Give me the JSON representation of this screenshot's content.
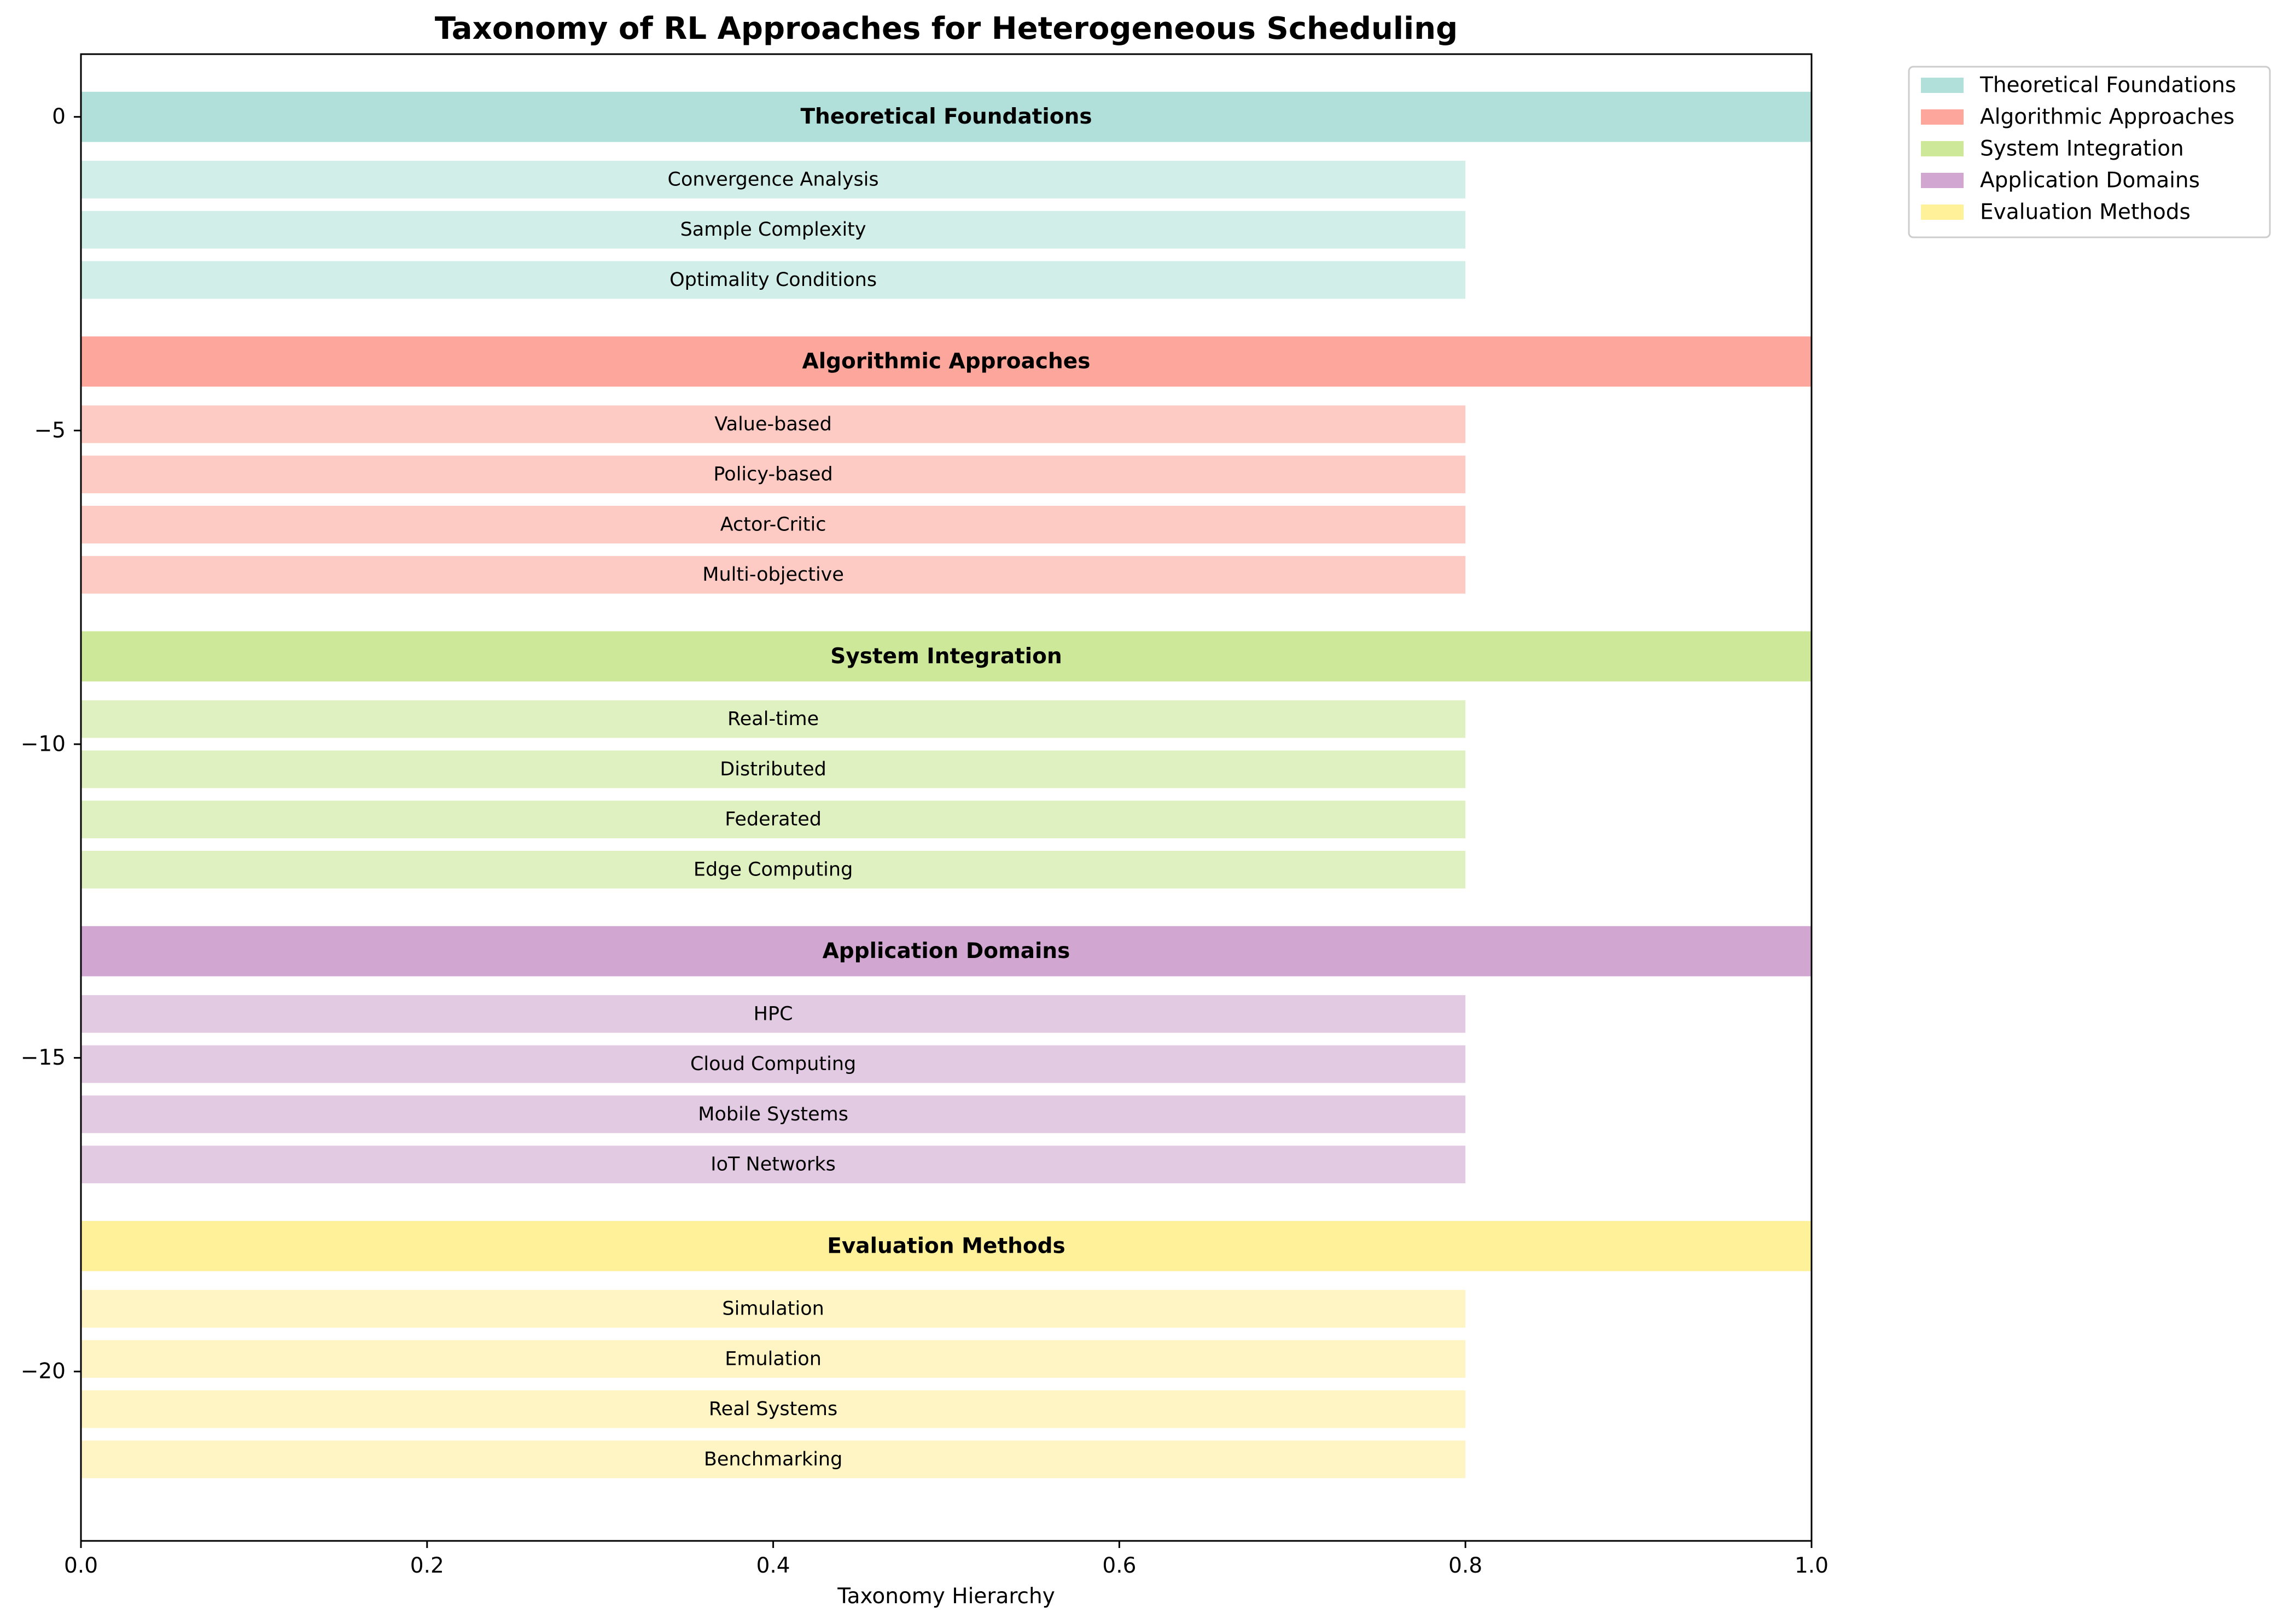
{
  "chart_data": {
    "type": "bar",
    "orientation": "horizontal",
    "title": "Taxonomy of RL Approaches for Heterogeneous Scheduling",
    "xlabel": "Taxonomy Hierarchy",
    "ylabel": "",
    "xlim": [
      0,
      1
    ],
    "ylim": [
      -22.7,
      1
    ],
    "xticks": [
      "0.0",
      "0.2",
      "0.4",
      "0.6",
      "0.8",
      "1.0"
    ],
    "yticks": [
      "0",
      "−5",
      "−10",
      "−15",
      "−20"
    ],
    "grid": false,
    "legend_position": "outside top-right",
    "legend": [
      {
        "label": "Theoretical Foundations",
        "color": "#b0e0d9"
      },
      {
        "label": "Algorithmic Approaches",
        "color": "#fca69c"
      },
      {
        "label": "System Integration",
        "color": "#cce898"
      },
      {
        "label": "Application Domains",
        "color": "#d1a7d2"
      },
      {
        "label": "Evaluation Methods",
        "color": "#fff09a"
      }
    ],
    "categories": [
      {
        "name": "Theoretical Foundations",
        "y": 0,
        "value": 1.0,
        "color": "#b0e0d9",
        "sub_color": "#d2eee9",
        "subcategories": [
          {
            "name": "Convergence Analysis",
            "y": -1,
            "value": 0.8
          },
          {
            "name": "Sample Complexity",
            "y": -1.8,
            "value": 0.8
          },
          {
            "name": "Optimality Conditions",
            "y": -2.6,
            "value": 0.8
          }
        ]
      },
      {
        "name": "Algorithmic Approaches",
        "y": -3.9,
        "value": 1.0,
        "color": "#fca69c",
        "sub_color": "#fdcac4",
        "subcategories": [
          {
            "name": "Value-based",
            "y": -4.9,
            "value": 0.8
          },
          {
            "name": "Policy-based",
            "y": -5.7,
            "value": 0.8
          },
          {
            "name": "Actor-Critic",
            "y": -6.5,
            "value": 0.8
          },
          {
            "name": "Multi-objective",
            "y": -7.3,
            "value": 0.8
          }
        ]
      },
      {
        "name": "System Integration",
        "y": -8.6,
        "value": 1.0,
        "color": "#cce898",
        "sub_color": "#e0f1c1",
        "subcategories": [
          {
            "name": "Real-time",
            "y": -9.6,
            "value": 0.8
          },
          {
            "name": "Distributed",
            "y": -10.4,
            "value": 0.8
          },
          {
            "name": "Federated",
            "y": -11.2,
            "value": 0.8
          },
          {
            "name": "Edge Computing",
            "y": -12.0,
            "value": 0.8
          }
        ]
      },
      {
        "name": "Application Domains",
        "y": -13.3,
        "value": 1.0,
        "color": "#d1a7d2",
        "sub_color": "#e3cae3",
        "subcategories": [
          {
            "name": "HPC",
            "y": -14.3,
            "value": 0.8
          },
          {
            "name": "Cloud Computing",
            "y": -15.1,
            "value": 0.8
          },
          {
            "name": "Mobile Systems",
            "y": -15.9,
            "value": 0.8
          },
          {
            "name": "IoT Networks",
            "y": -16.7,
            "value": 0.8
          }
        ]
      },
      {
        "name": "Evaluation Methods",
        "y": -18.0,
        "value": 1.0,
        "color": "#fff09a",
        "sub_color": "#fff5c4",
        "subcategories": [
          {
            "name": "Simulation",
            "y": -19.0,
            "value": 0.8
          },
          {
            "name": "Emulation",
            "y": -19.8,
            "value": 0.8
          },
          {
            "name": "Real Systems",
            "y": -20.6,
            "value": 0.8
          },
          {
            "name": "Benchmarking",
            "y": -21.4,
            "value": 0.8
          }
        ]
      }
    ]
  }
}
